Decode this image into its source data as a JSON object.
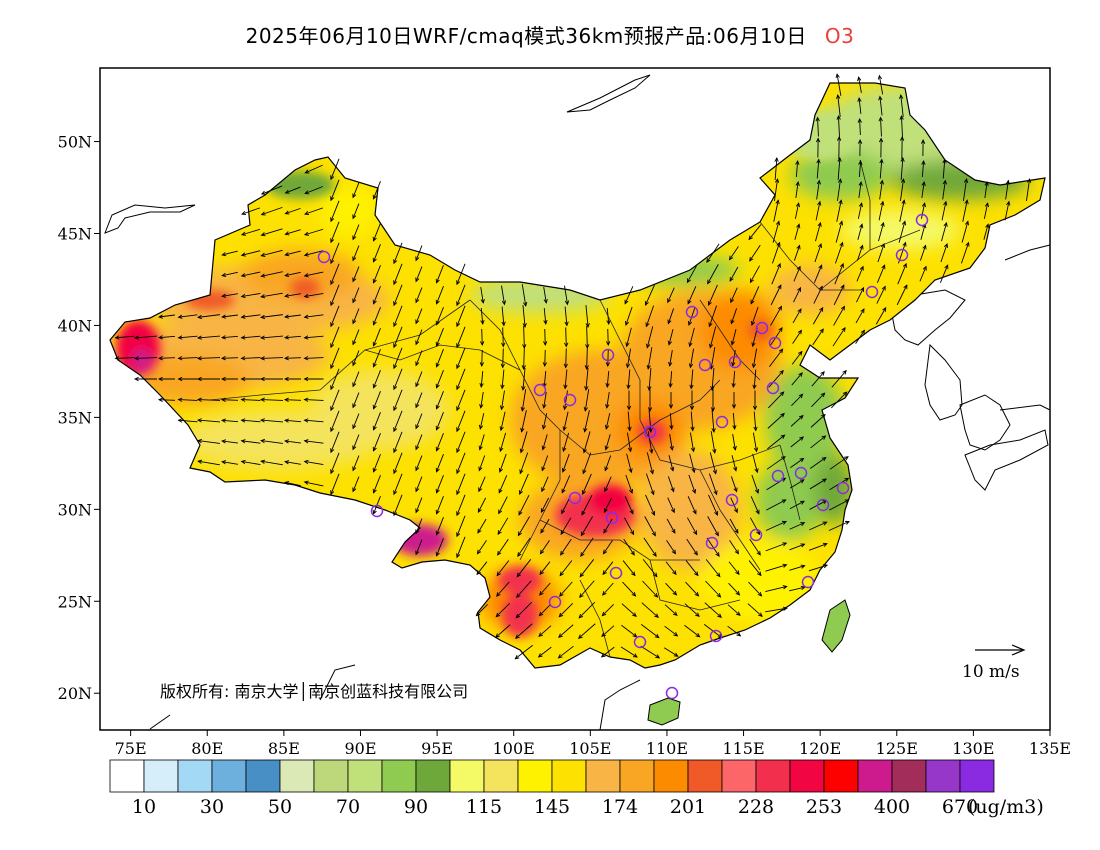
{
  "title": {
    "main": "2025年06月10日WRF/cmaq模式36km预报产品:06月10日",
    "pollutant": "O3"
  },
  "map": {
    "lon_range": [
      73,
      135
    ],
    "lat_range": [
      18,
      54
    ],
    "x_ticks": [
      "75E",
      "80E",
      "85E",
      "90E",
      "95E",
      "100E",
      "105E",
      "110E",
      "115E",
      "120E",
      "125E",
      "130E",
      "135E"
    ],
    "y_ticks": [
      "20N",
      "25N",
      "30N",
      "35N",
      "40N",
      "45N",
      "50N"
    ],
    "copyright": "版权所有: 南京大学│南京创蓝科技有限公司",
    "wind_scale_label": "10  m/s",
    "station_marker": "purple-circle-icon",
    "wind_arrow": "wind-vector-icon"
  },
  "colorbar": {
    "colors": [
      "#ffffff",
      "#d6eefa",
      "#a3d9f5",
      "#6db0de",
      "#478fc4",
      "#dbe9b6",
      "#bcd87a",
      "#c0e07a",
      "#8fcb50",
      "#6fa83a",
      "#f4f966",
      "#f4e35c",
      "#fef200",
      "#fde100",
      "#f8b545",
      "#f9a624",
      "#fd8b00",
      "#f05a28",
      "#fc6669",
      "#f2304d",
      "#f20543",
      "#fd0000",
      "#cd1a8d",
      "#a22d5b",
      "#9737c9",
      "#8a2be2"
    ],
    "labels": [
      "10",
      "30",
      "50",
      "70",
      "90",
      "115",
      "145",
      "174",
      "201",
      "228",
      "253",
      "400",
      "670"
    ],
    "unit": "(ug/m3)"
  }
}
